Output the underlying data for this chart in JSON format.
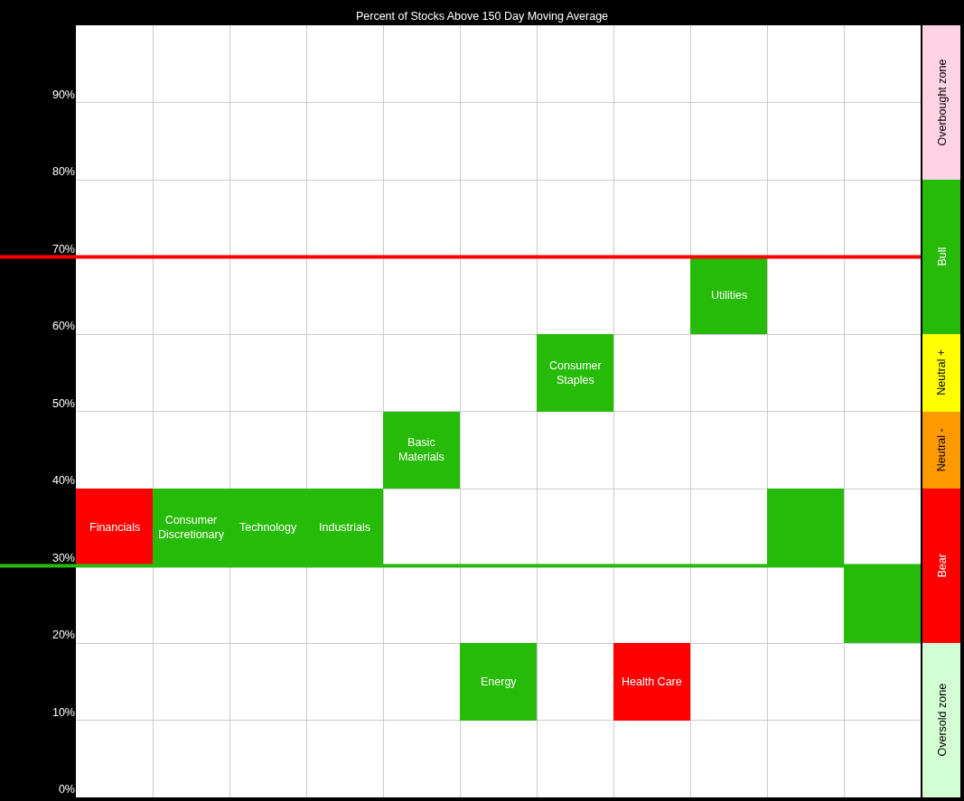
{
  "chart_data": [
    {
      "type": "bar",
      "title": "Percent of Stocks Above 150 Day Moving Average",
      "categories": [
        "Financials",
        "Consumer Discretionary",
        "Technology",
        "Industrials",
        "Basic Materials",
        "Energy",
        "Consumer Staples",
        "Health Care",
        "Utilities",
        null,
        null
      ],
      "values": [
        10,
        10,
        10,
        10,
        10,
        10,
        10,
        10,
        10,
        10,
        10
      ],
      "base": [
        30,
        30,
        30,
        30,
        40,
        10,
        50,
        10,
        60,
        30,
        20
      ],
      "colors": [
        "#ff0000",
        "#26bb08",
        "#26bb08",
        "#26bb08",
        "#26bb08",
        "#26bb08",
        "#26bb08",
        "#ff0000",
        "#26bb08",
        "#26bb08",
        "#26bb08"
      ],
      "ylim": [
        0,
        100
      ],
      "yticks": [
        {
          "value": 0,
          "label": "0%"
        },
        {
          "value": 10,
          "label": "10%"
        },
        {
          "value": 20,
          "label": "20%"
        },
        {
          "value": 30,
          "label": "30%"
        },
        {
          "value": 40,
          "label": "40%"
        },
        {
          "value": 50,
          "label": "50%"
        },
        {
          "value": 60,
          "label": "60%"
        },
        {
          "value": 70,
          "label": "70%"
        },
        {
          "value": 80,
          "label": "80%"
        },
        {
          "value": 90,
          "label": "90%"
        }
      ],
      "grid": true,
      "tick_labels": "y",
      "ref_lines": [
        {
          "axis": "y",
          "value": 70,
          "color": "#ff0000"
        },
        {
          "axis": "y",
          "value": 30,
          "color": "#26bb08"
        }
      ]
    },
    {
      "type": "bar",
      "stacked": true,
      "categories": [
        null
      ],
      "ylim": [
        0,
        100
      ],
      "tick_labels": false,
      "series": [
        {
          "name": "Oversold zone",
          "color": "#d3fdd3",
          "values": [
            20
          ]
        },
        {
          "name": "Bear",
          "color": "#ff0000",
          "values": [
            20
          ]
        },
        {
          "name": "Neutral -",
          "color": "#ff9900",
          "values": [
            10
          ]
        },
        {
          "name": "Neutral +",
          "color": "#ffff00",
          "values": [
            10
          ]
        },
        {
          "name": "Bull",
          "color": "#26bb08",
          "values": [
            20
          ]
        },
        {
          "name": "Overbought zone",
          "color": "#ffd3e3",
          "values": [
            20
          ]
        }
      ]
    }
  ]
}
